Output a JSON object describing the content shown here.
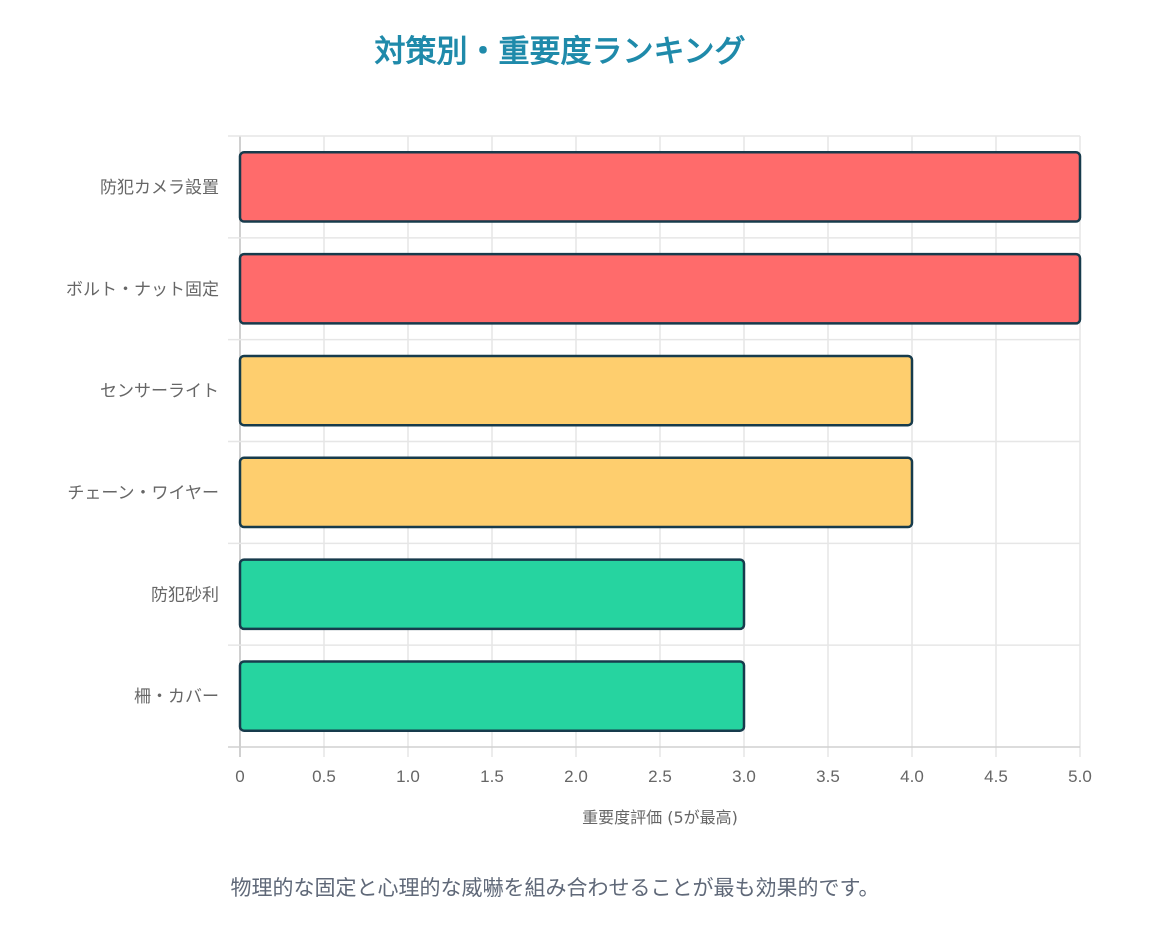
{
  "chart_data": {
    "type": "bar",
    "orientation": "horizontal",
    "title": "対策別・重要度ランキング",
    "categories": [
      "防犯カメラ設置",
      "ボルト・ナット固定",
      "センサーライト",
      "チェーン・ワイヤー",
      "防犯砂利",
      "柵・カバー"
    ],
    "values": [
      5,
      5,
      4,
      4,
      3,
      3
    ],
    "colors": [
      "#FF6B6B",
      "#FF6B6B",
      "#FECE6E",
      "#FECE6E",
      "#26D4A0",
      "#26D4A0"
    ],
    "border_color": "#173B4C",
    "xlabel": "重要度評価 (5が最高)",
    "ylabel": "",
    "xlim": [
      0,
      5
    ],
    "xticks": [
      "0",
      "0.5",
      "1.0",
      "1.5",
      "2.0",
      "2.5",
      "3.0",
      "3.5",
      "4.0",
      "4.5",
      "5.0"
    ],
    "grid": true,
    "legend": "none"
  },
  "note": "物理的な固定と心理的な威嚇を組み合わせることが最も効果的です。"
}
